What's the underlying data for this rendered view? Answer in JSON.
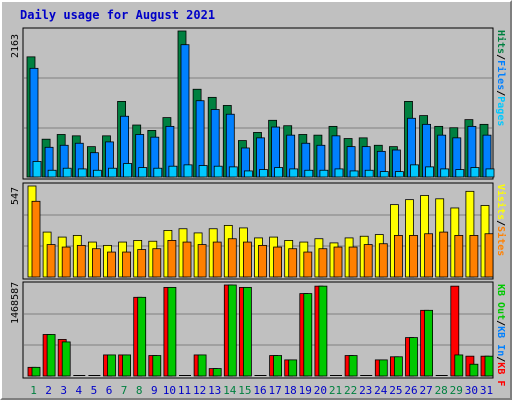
{
  "title": "Daily usage for August 2021",
  "colors": {
    "hits": "#008040",
    "files": "#0080ff",
    "pages": "#00c8ff",
    "visits": "#ffff00",
    "sites": "#ff8000",
    "kb_f": "#ff0000",
    "kb_in": "#0080ff",
    "kb_out": "#00c800",
    "days_normal": "#0000c8",
    "days_weekend": "#008040"
  },
  "chart_data": [
    {
      "type": "bar",
      "ymax_label": "2163",
      "ylim": [
        0,
        2163
      ],
      "legend": [
        "Pages",
        "/",
        "Files",
        "/",
        "Hits"
      ],
      "categories": [
        "1",
        "2",
        "3",
        "4",
        "5",
        "6",
        "7",
        "8",
        "9",
        "10",
        "11",
        "12",
        "13",
        "14",
        "15",
        "16",
        "17",
        "18",
        "19",
        "20",
        "21",
        "22",
        "23",
        "24",
        "25",
        "26",
        "27",
        "28",
        "29",
        "30",
        "31"
      ],
      "weekend_days": [
        "1",
        "7",
        "8",
        "14",
        "15",
        "21",
        "22",
        "28",
        "29"
      ],
      "series": [
        {
          "name": "Hits",
          "values": [
            1780,
            560,
            630,
            610,
            450,
            610,
            1120,
            770,
            690,
            880,
            2163,
            1300,
            1180,
            1060,
            540,
            660,
            840,
            760,
            630,
            620,
            750,
            570,
            580,
            470,
            450,
            1120,
            910,
            750,
            730,
            850,
            780
          ]
        },
        {
          "name": "Files",
          "values": [
            1610,
            440,
            470,
            500,
            360,
            520,
            900,
            630,
            590,
            750,
            1960,
            1130,
            1000,
            930,
            430,
            580,
            740,
            620,
            500,
            470,
            610,
            450,
            450,
            380,
            400,
            870,
            780,
            620,
            580,
            750,
            620
          ]
        },
        {
          "name": "Pages",
          "values": [
            230,
            100,
            130,
            120,
            100,
            130,
            200,
            140,
            130,
            160,
            180,
            170,
            160,
            150,
            90,
            110,
            140,
            120,
            100,
            100,
            120,
            90,
            100,
            80,
            80,
            180,
            150,
            120,
            110,
            140,
            120
          ]
        }
      ]
    },
    {
      "type": "bar",
      "ymax_label": "547",
      "ylim": [
        0,
        547
      ],
      "legend": [
        "Visits",
        "/",
        "Sites"
      ],
      "series": [
        {
          "name": "Visits",
          "values": [
            547,
            270,
            240,
            250,
            210,
            190,
            210,
            220,
            215,
            280,
            290,
            265,
            290,
            310,
            295,
            235,
            240,
            220,
            210,
            230,
            205,
            235,
            245,
            255,
            435,
            465,
            490,
            470,
            415,
            515,
            430
          ]
        },
        {
          "name": "Sites",
          "values": [
            455,
            195,
            180,
            190,
            170,
            150,
            150,
            165,
            170,
            220,
            210,
            195,
            210,
            230,
            210,
            190,
            180,
            170,
            150,
            170,
            180,
            180,
            195,
            200,
            250,
            250,
            260,
            270,
            250,
            250,
            260
          ]
        }
      ]
    },
    {
      "type": "bar",
      "ymax_label": "1468587",
      "ylim": [
        0,
        1468587
      ],
      "legend": [
        "KB F",
        "/",
        "KB In",
        "/",
        "KB Out"
      ],
      "series": [
        {
          "name": "KB F",
          "values": [
            140000,
            670000,
            590000,
            0,
            0,
            340000,
            340000,
            1270000,
            330000,
            1430000,
            0,
            340000,
            120000,
            1468587,
            1430000,
            0,
            330000,
            260000,
            1330000,
            1450000,
            0,
            330000,
            0,
            260000,
            310000,
            620000,
            1060000,
            0,
            1450000,
            320000,
            320000
          ]
        },
        {
          "name": "KB In",
          "values": [
            0,
            0,
            0,
            0,
            0,
            0,
            0,
            0,
            0,
            0,
            0,
            0,
            0,
            0,
            0,
            0,
            0,
            0,
            0,
            0,
            0,
            0,
            0,
            0,
            0,
            0,
            0,
            0,
            0,
            0,
            0
          ]
        },
        {
          "name": "KB Out",
          "values": [
            140000,
            670000,
            550000,
            0,
            0,
            340000,
            340000,
            1270000,
            330000,
            1430000,
            0,
            340000,
            120000,
            1468587,
            1430000,
            0,
            330000,
            260000,
            1330000,
            1450000,
            0,
            330000,
            0,
            260000,
            310000,
            620000,
            1060000,
            0,
            340000,
            190000,
            320000
          ]
        }
      ]
    }
  ]
}
